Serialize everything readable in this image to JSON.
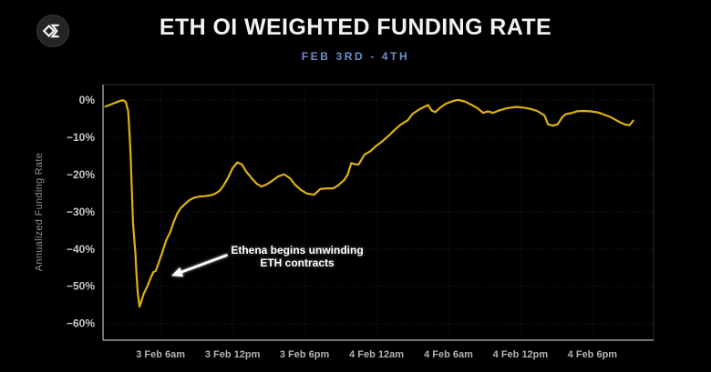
{
  "header": {
    "logo_icon": "sigma-diamond",
    "title": "ETH OI WEIGHTED FUNDING RATE",
    "subtitle": "FEB 3RD - 4TH"
  },
  "colors": {
    "background": "#000000",
    "title": "#f2f2f2",
    "subtitle": "#6f8fcb",
    "line": "#ddb20f",
    "grid": "rgba(255,255,255,0.14)",
    "axis": "#9a9a9a",
    "frame": "#2e2e2e",
    "y_tick_label": "#c8c8c8",
    "x_tick_label": "#b4b4b4",
    "axis_title": "#8f8f8f",
    "annotation": "#ffffff"
  },
  "chart_data": {
    "type": "line",
    "title": "ETH OI WEIGHTED FUNDING RATE",
    "subtitle": "FEB 3RD - 4TH",
    "ylabel": "Annualized Funding Rate",
    "x_unit": "hours since 3 Feb 12am",
    "xlim": [
      1.2,
      47.1
    ],
    "ylim": [
      4.2,
      -64.5
    ],
    "grid": true,
    "legend": "none",
    "x_ticks": [
      {
        "t": 6,
        "label": "3 Feb 6am"
      },
      {
        "t": 12,
        "label": "3 Feb 12pm"
      },
      {
        "t": 18,
        "label": "3 Feb 6pm"
      },
      {
        "t": 24,
        "label": "4 Feb 12am"
      },
      {
        "t": 30,
        "label": "4 Feb 6am"
      },
      {
        "t": 36,
        "label": "4 Feb 12pm"
      },
      {
        "t": 42,
        "label": "4 Feb 6pm"
      }
    ],
    "y_ticks": [
      {
        "v": 0,
        "label": "0%"
      },
      {
        "v": -10,
        "label": "−10%"
      },
      {
        "v": -20,
        "label": "−20%"
      },
      {
        "v": -30,
        "label": "−30%"
      },
      {
        "v": -40,
        "label": "−40%"
      },
      {
        "v": -50,
        "label": "−50%"
      },
      {
        "v": -60,
        "label": "−60%"
      }
    ],
    "series": [
      {
        "name": "ETH OI weighted funding rate (annualized %)",
        "color": "#ddb20f",
        "points": [
          [
            1.4,
            -1.7
          ],
          [
            1.8,
            -1.2
          ],
          [
            2.2,
            -0.7
          ],
          [
            2.6,
            -0.2
          ],
          [
            2.9,
            0.0
          ],
          [
            3.1,
            -0.5
          ],
          [
            3.3,
            -3.0
          ],
          [
            3.4,
            -8.0
          ],
          [
            3.5,
            -15.0
          ],
          [
            3.6,
            -24.0
          ],
          [
            3.7,
            -33.0
          ],
          [
            3.9,
            -41.0
          ],
          [
            4.0,
            -47.0
          ],
          [
            4.1,
            -52.0
          ],
          [
            4.25,
            -55.5
          ],
          [
            4.4,
            -54.0
          ],
          [
            4.6,
            -52.0
          ],
          [
            4.9,
            -50.0
          ],
          [
            5.2,
            -47.6
          ],
          [
            5.4,
            -46.2
          ],
          [
            5.6,
            -45.9
          ],
          [
            5.85,
            -43.6
          ],
          [
            6.1,
            -41.3
          ],
          [
            6.3,
            -39.3
          ],
          [
            6.5,
            -37.4
          ],
          [
            6.8,
            -35.5
          ],
          [
            7.1,
            -32.7
          ],
          [
            7.4,
            -30.4
          ],
          [
            7.7,
            -28.9
          ],
          [
            8.0,
            -28.0
          ],
          [
            8.35,
            -27.0
          ],
          [
            8.7,
            -26.3
          ],
          [
            9.2,
            -25.9
          ],
          [
            9.65,
            -25.8
          ],
          [
            10.1,
            -25.6
          ],
          [
            10.5,
            -25.2
          ],
          [
            10.9,
            -24.4
          ],
          [
            11.2,
            -23.2
          ],
          [
            11.6,
            -21.0
          ],
          [
            12.0,
            -18.3
          ],
          [
            12.4,
            -16.7
          ],
          [
            12.8,
            -17.3
          ],
          [
            13.1,
            -19.0
          ],
          [
            13.6,
            -21.0
          ],
          [
            14.0,
            -22.4
          ],
          [
            14.4,
            -23.2
          ],
          [
            14.8,
            -22.7
          ],
          [
            15.3,
            -21.7
          ],
          [
            15.8,
            -20.5
          ],
          [
            16.3,
            -19.9
          ],
          [
            16.8,
            -21.0
          ],
          [
            17.2,
            -22.7
          ],
          [
            17.7,
            -24.1
          ],
          [
            18.2,
            -25.1
          ],
          [
            18.8,
            -25.4
          ],
          [
            19.3,
            -23.9
          ],
          [
            19.8,
            -23.7
          ],
          [
            20.4,
            -23.7
          ],
          [
            20.8,
            -22.9
          ],
          [
            21.3,
            -21.5
          ],
          [
            21.6,
            -20.0
          ],
          [
            21.9,
            -16.9
          ],
          [
            22.2,
            -17.2
          ],
          [
            22.5,
            -17.3
          ],
          [
            23.0,
            -14.6
          ],
          [
            23.5,
            -13.7
          ],
          [
            24.0,
            -12.2
          ],
          [
            24.5,
            -11.0
          ],
          [
            25.1,
            -9.3
          ],
          [
            25.5,
            -8.0
          ],
          [
            26.0,
            -6.6
          ],
          [
            26.6,
            -5.4
          ],
          [
            27.0,
            -3.7
          ],
          [
            27.6,
            -2.4
          ],
          [
            28.1,
            -1.6
          ],
          [
            28.3,
            -1.3
          ],
          [
            28.6,
            -2.8
          ],
          [
            28.9,
            -3.2
          ],
          [
            29.3,
            -2.0
          ],
          [
            29.8,
            -0.9
          ],
          [
            30.4,
            -0.2
          ],
          [
            30.8,
            0.1
          ],
          [
            31.4,
            -0.4
          ],
          [
            31.9,
            -1.2
          ],
          [
            32.4,
            -2.1
          ],
          [
            32.9,
            -3.4
          ],
          [
            33.3,
            -3.0
          ],
          [
            33.7,
            -3.4
          ],
          [
            34.2,
            -2.8
          ],
          [
            34.9,
            -2.1
          ],
          [
            35.7,
            -1.8
          ],
          [
            36.5,
            -2.1
          ],
          [
            36.9,
            -2.4
          ],
          [
            37.4,
            -2.9
          ],
          [
            38.0,
            -4.1
          ],
          [
            38.3,
            -6.5
          ],
          [
            38.7,
            -6.8
          ],
          [
            39.1,
            -6.5
          ],
          [
            39.5,
            -4.5
          ],
          [
            39.8,
            -3.7
          ],
          [
            40.2,
            -3.5
          ],
          [
            40.7,
            -3.0
          ],
          [
            41.2,
            -2.9
          ],
          [
            41.8,
            -3.0
          ],
          [
            42.5,
            -3.3
          ],
          [
            43.0,
            -3.9
          ],
          [
            43.5,
            -4.5
          ],
          [
            44.0,
            -5.4
          ],
          [
            44.4,
            -6.1
          ],
          [
            44.8,
            -6.6
          ],
          [
            45.1,
            -6.7
          ],
          [
            45.4,
            -5.5
          ]
        ]
      }
    ],
    "annotation": {
      "line1": "Ethena begins unwinding",
      "line2": "ETH contracts",
      "arrow_from": [
        11.5,
        -41.7
      ],
      "arrow_to": [
        6.9,
        -47.2
      ]
    }
  }
}
